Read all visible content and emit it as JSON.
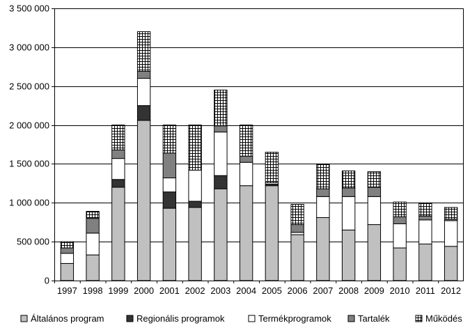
{
  "chart_data": {
    "type": "bar",
    "stacked": true,
    "categories": [
      "1997",
      "1998",
      "1999",
      "2000",
      "2001",
      "2002",
      "2003",
      "2004",
      "2005",
      "2006",
      "2007",
      "2008",
      "2009",
      "2010",
      "2011",
      "2012"
    ],
    "ylim": [
      0,
      3500000
    ],
    "yticks": [
      0,
      500000,
      1000000,
      1500000,
      2000000,
      2500000,
      3000000,
      3500000
    ],
    "ytick_labels": [
      "0",
      "500 000",
      "1 000 000",
      "1 500 000",
      "2 000 000",
      "2 500 000",
      "3 000 000",
      "3 500 000"
    ],
    "grid": "horizontal",
    "legend_position": "bottom",
    "series": [
      {
        "name": "Általános program",
        "color": "#c0c0c0",
        "pattern": "solid",
        "values": [
          220000,
          330000,
          1200000,
          2060000,
          930000,
          940000,
          1180000,
          1220000,
          1220000,
          590000,
          810000,
          650000,
          720000,
          420000,
          470000,
          440000
        ]
      },
      {
        "name": "Regionális programok",
        "color": "#333333",
        "pattern": "solid",
        "values": [
          0,
          0,
          100000,
          190000,
          210000,
          80000,
          170000,
          0,
          20000,
          0,
          0,
          0,
          0,
          0,
          0,
          0
        ]
      },
      {
        "name": "Termékprogramok",
        "color": "#ffffff",
        "pattern": "solid",
        "values": [
          130000,
          280000,
          270000,
          350000,
          180000,
          400000,
          560000,
          300000,
          20000,
          30000,
          270000,
          430000,
          360000,
          310000,
          310000,
          330000
        ]
      },
      {
        "name": "Tartalék",
        "color": "#808080",
        "pattern": "solid",
        "values": [
          70000,
          190000,
          110000,
          90000,
          320000,
          0,
          80000,
          80000,
          0,
          100000,
          100000,
          110000,
          120000,
          90000,
          50000,
          20000
        ]
      },
      {
        "name": "Működés",
        "color": "#ffffff",
        "pattern": "grid",
        "values": [
          80000,
          90000,
          320000,
          510000,
          360000,
          580000,
          460000,
          400000,
          390000,
          260000,
          320000,
          220000,
          200000,
          190000,
          170000,
          150000
        ]
      }
    ]
  }
}
